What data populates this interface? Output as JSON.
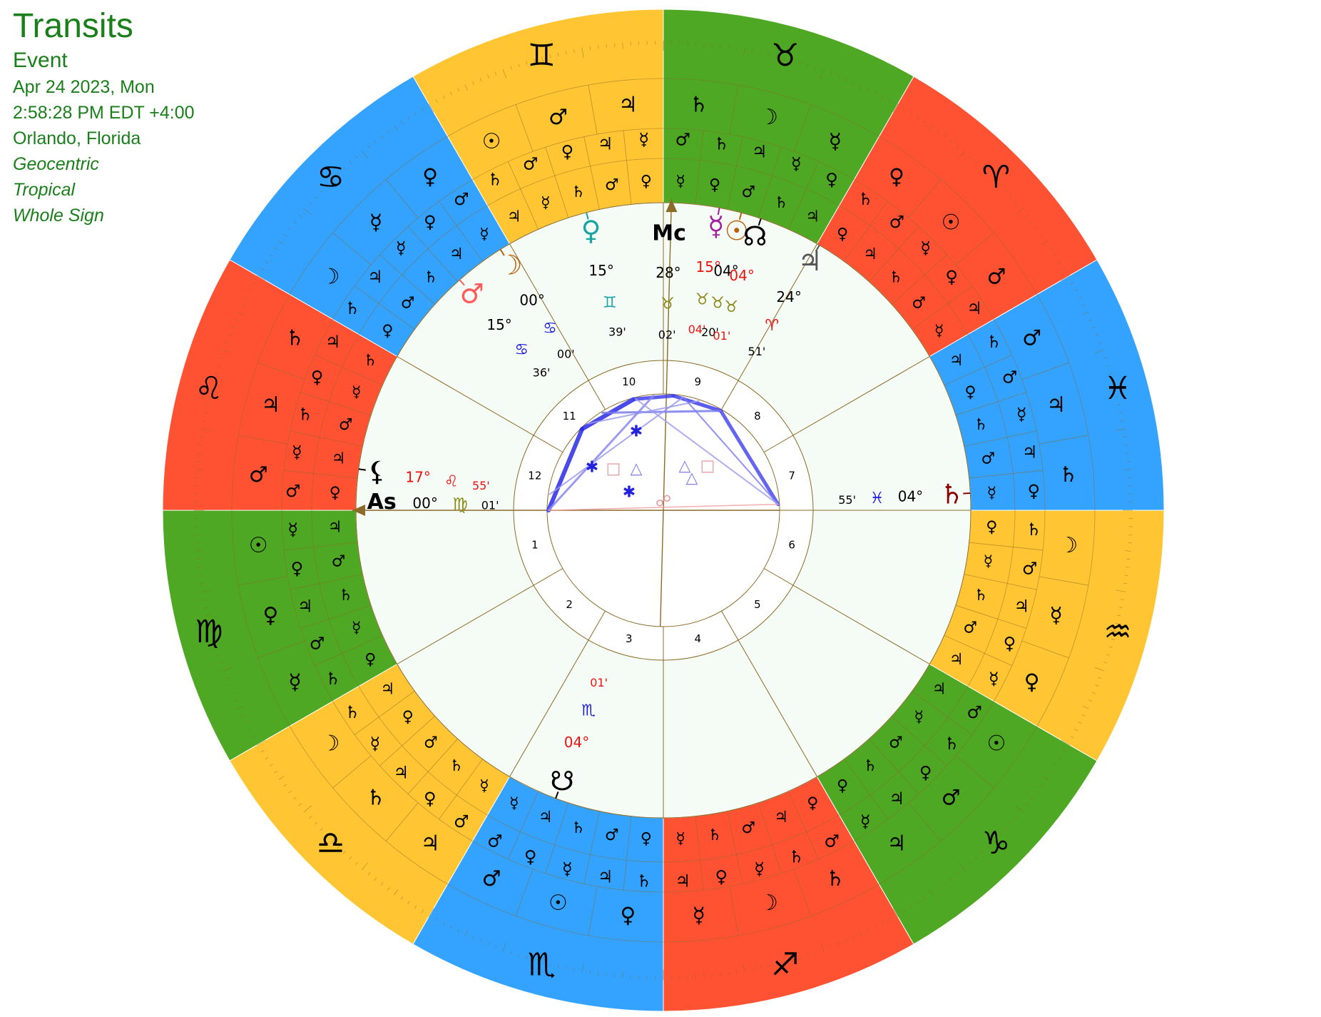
{
  "header": {
    "title": "Transits",
    "subtitle": "Event",
    "date": "Apr 24 2023, Mon",
    "time": "2:58:28 PM EDT +4:00",
    "place": "Orlando, Florida",
    "mode1": "Geocentric",
    "mode2": "Tropical",
    "mode3": "Whole Sign"
  },
  "colors": {
    "fire": "#ff5233",
    "earth": "#4ea823",
    "air": "#ffc533",
    "water": "#33a3ff",
    "inner_bg": "#f5fcf5",
    "line": "#8b6b28",
    "title": "#1a7f1a"
  },
  "signs": [
    {
      "name": "aries",
      "glyph": "♈",
      "element": "fire",
      "terms": [
        "♃",
        "♀",
        "☿",
        "♂",
        "♄"
      ],
      "faces": [
        "♂",
        "☉",
        "♀"
      ]
    },
    {
      "name": "taurus",
      "glyph": "♉",
      "element": "earth",
      "terms": [
        "♀",
        "☿",
        "♃",
        "♄",
        "♂"
      ],
      "faces": [
        "☿",
        "☽",
        "♄"
      ]
    },
    {
      "name": "gemini",
      "glyph": "♊",
      "element": "air",
      "terms": [
        "☿",
        "♃",
        "♀",
        "♂",
        "♄"
      ],
      "faces": [
        "♃",
        "♂",
        "☉"
      ]
    },
    {
      "name": "cancer",
      "glyph": "♋",
      "element": "water",
      "terms": [
        "♂",
        "♀",
        "☿",
        "♃",
        "♄"
      ],
      "faces": [
        "♀",
        "☿",
        "☽"
      ]
    },
    {
      "name": "leo",
      "glyph": "♌",
      "element": "fire",
      "terms": [
        "♃",
        "♀",
        "♄",
        "☿",
        "♂"
      ],
      "faces": [
        "♄",
        "♃",
        "♂"
      ]
    },
    {
      "name": "virgo",
      "glyph": "♍",
      "element": "earth",
      "terms": [
        "☿",
        "♀",
        "♃",
        "♂",
        "♄"
      ],
      "faces": [
        "☉",
        "♀",
        "☿"
      ]
    },
    {
      "name": "libra",
      "glyph": "♎",
      "element": "air",
      "terms": [
        "♄",
        "☿",
        "♃",
        "♀",
        "♂"
      ],
      "faces": [
        "☽",
        "♄",
        "♃"
      ]
    },
    {
      "name": "scorpio",
      "glyph": "♏",
      "element": "water",
      "terms": [
        "♂",
        "♀",
        "☿",
        "♃",
        "♄"
      ],
      "faces": [
        "♂",
        "☉",
        "♀"
      ]
    },
    {
      "name": "sagittarius",
      "glyph": "♐",
      "element": "fire",
      "terms": [
        "♃",
        "♀",
        "☿",
        "♄",
        "♂"
      ],
      "faces": [
        "☿",
        "☽",
        "♄"
      ]
    },
    {
      "name": "capricorn",
      "glyph": "♑",
      "element": "earth",
      "terms": [
        "☿",
        "♃",
        "♀",
        "♄",
        "♂"
      ],
      "faces": [
        "♃",
        "♂",
        "☉"
      ]
    },
    {
      "name": "aquarius",
      "glyph": "♒",
      "element": "air",
      "terms": [
        "☿",
        "♀",
        "♃",
        "♂",
        "♄"
      ],
      "faces": [
        "♀",
        "☿",
        "☽"
      ]
    },
    {
      "name": "pisces",
      "glyph": "♓",
      "element": "water",
      "terms": [
        "♀",
        "♃",
        "☿",
        "♂",
        "♄"
      ],
      "faces": [
        "♄",
        "♃",
        "♂"
      ]
    }
  ],
  "houses": [
    "1",
    "2",
    "3",
    "4",
    "5",
    "6",
    "7",
    "8",
    "9",
    "10",
    "11",
    "12"
  ],
  "angles": [
    {
      "name": "ascendant",
      "label": "As",
      "deg": "00°",
      "sign": "♍",
      "min": "01'",
      "sign_color": "#8b8b1a"
    },
    {
      "name": "midheaven",
      "label": "Mc",
      "deg": "28°",
      "sign": "♉",
      "min": "02'",
      "sign_color": "#8b8b1a"
    }
  ],
  "planets": [
    {
      "name": "moon",
      "glyph": "☽",
      "color": "#b8600b",
      "deg": "00°",
      "sign": "♋",
      "sign_color": "#2222dd",
      "min": "00'",
      "deg_color": "#000000",
      "min_color": "#000000"
    },
    {
      "name": "mars",
      "glyph": "♂",
      "color": "#ff5a5a",
      "deg": "15°",
      "sign": "♋",
      "sign_color": "#2222dd",
      "min": "36'",
      "deg_color": "#000000",
      "min_color": "#000000"
    },
    {
      "name": "venus",
      "glyph": "♀",
      "color": "#1aa3a3",
      "deg": "15°",
      "sign": "♊",
      "sign_color": "#1aa3a3",
      "min": "39'",
      "deg_color": "#000000",
      "min_color": "#000000"
    },
    {
      "name": "mercury",
      "glyph": "☿",
      "color": "#a020a0",
      "deg": "15°",
      "sign": "♉",
      "sign_color": "#8b8b1a",
      "min": "04'",
      "deg_color": "#ee1111",
      "min_color": "#ee1111"
    },
    {
      "name": "sun",
      "glyph": "☉",
      "color": "#b8600b",
      "deg": "04°",
      "sign": "♉",
      "sign_color": "#8b8b1a",
      "min": "20'",
      "deg_color": "#000000",
      "min_color": "#000000"
    },
    {
      "name": "north-node",
      "glyph": "☊",
      "color": "#000000",
      "deg": "04°",
      "sign": "♉",
      "sign_color": "#8b8b1a",
      "min": "01'",
      "deg_color": "#ee1111",
      "min_color": "#ee1111"
    },
    {
      "name": "jupiter",
      "glyph": "♃",
      "color": "#555555",
      "deg": "24°",
      "sign": "♈",
      "sign_color": "#ee1111",
      "min": "51'",
      "deg_color": "#000000",
      "min_color": "#000000"
    },
    {
      "name": "saturn",
      "glyph": "♄",
      "color": "#8b0000",
      "deg": "04°",
      "sign": "♓",
      "sign_color": "#2222dd",
      "min": "55'",
      "deg_color": "#000000",
      "min_color": "#000000"
    },
    {
      "name": "south-node",
      "glyph": "☋",
      "color": "#000000",
      "deg": "04°",
      "sign": "♏",
      "sign_color": "#2222dd",
      "min": "01'",
      "deg_color": "#ee1111",
      "min_color": "#ee1111"
    },
    {
      "name": "lilith",
      "glyph": "⚸",
      "color": "#000000",
      "deg": "17°",
      "sign": "♌",
      "sign_color": "#ee1111",
      "min": "55'",
      "deg_color": "#ee1111",
      "min_color": "#ee1111"
    }
  ],
  "aspect_symbols": [
    {
      "glyph": "✱",
      "color": "#2222dd",
      "kind": "sextile"
    },
    {
      "glyph": "✱",
      "color": "#2222dd",
      "kind": "sextile"
    },
    {
      "glyph": "✱",
      "color": "#2222dd",
      "kind": "sextile"
    },
    {
      "glyph": "□",
      "color": "#e89a9a",
      "kind": "square"
    },
    {
      "glyph": "□",
      "color": "#e89a9a",
      "kind": "square"
    },
    {
      "glyph": "△",
      "color": "#8080ee",
      "kind": "trine"
    },
    {
      "glyph": "△",
      "color": "#8080ee",
      "kind": "trine"
    },
    {
      "glyph": "△",
      "color": "#8080ee",
      "kind": "trine"
    },
    {
      "glyph": "☍",
      "color": "#e89a9a",
      "kind": "opposition"
    }
  ]
}
